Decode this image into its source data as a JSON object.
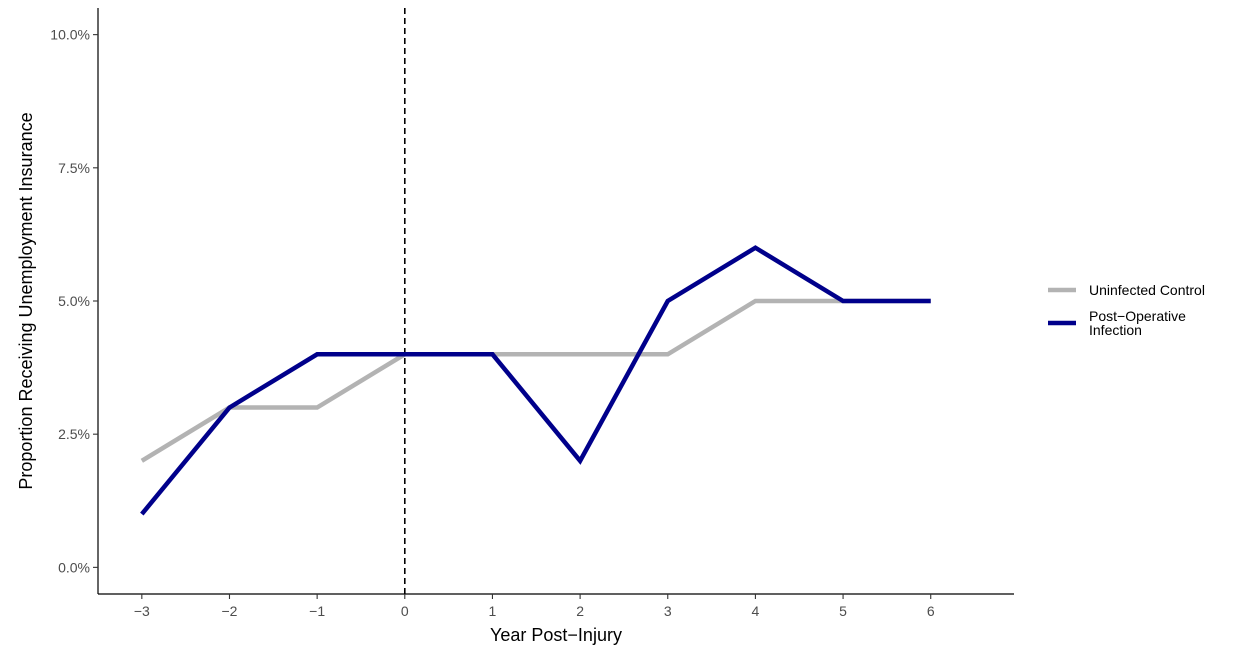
{
  "chart_data": {
    "type": "line",
    "title": "",
    "xlabel": "Year Post−Injury",
    "ylabel": "Proportion Receiving Unemployment Insurance",
    "x": [
      -3,
      -2,
      -1,
      0,
      1,
      2,
      3,
      4,
      5,
      6
    ],
    "x_tick_labels": [
      "−3",
      "−2",
      "−1",
      "0",
      "1",
      "2",
      "3",
      "4",
      "5",
      "6"
    ],
    "y_tick_values": [
      0,
      2.5,
      5,
      7.5,
      10
    ],
    "y_tick_labels": [
      "0.0%",
      "2.5%",
      "5.0%",
      "7.5%",
      "10.0%"
    ],
    "xlim": [
      -3.5,
      6.95
    ],
    "ylim": [
      -0.5,
      10.5
    ],
    "y_unit": "percent",
    "grid": false,
    "legend_position": "right",
    "reference_line": {
      "x": 0,
      "style": "dashed",
      "color": "#000000"
    },
    "series": [
      {
        "name": "Uninfected Control",
        "legend_lines": [
          "Uninfected Control"
        ],
        "color": "#b3b3b3",
        "values": [
          2,
          3,
          3,
          4,
          4,
          4,
          4,
          5,
          5,
          5
        ]
      },
      {
        "name": "Post−Operative Infection",
        "legend_lines": [
          "Post−Operative",
          "Infection"
        ],
        "color": "#00008b",
        "values": [
          1,
          3,
          4,
          4,
          4,
          2,
          5,
          6,
          5,
          5
        ]
      }
    ]
  }
}
